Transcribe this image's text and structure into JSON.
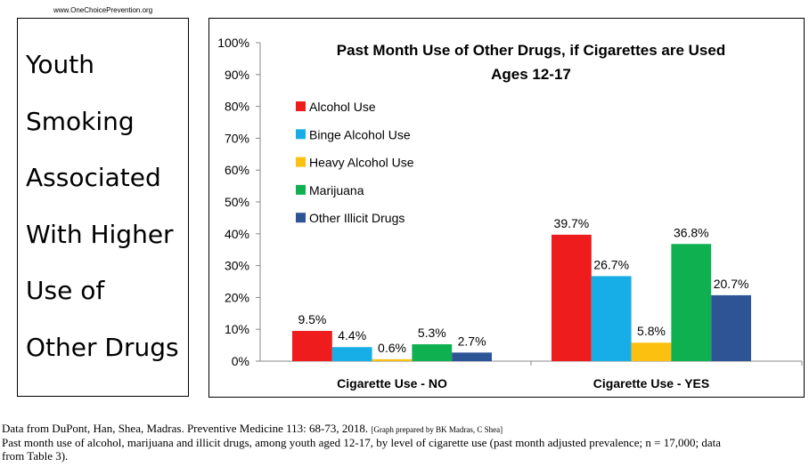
{
  "site": "www.OneChoicePrevention.org",
  "heading_lines": [
    "Youth",
    "Smoking",
    "Associated",
    "With Higher",
    "Use of",
    "Other Drugs"
  ],
  "chart_data": {
    "type": "bar",
    "title": [
      "Past Month Use of Other Drugs, if Cigarettes are Used",
      "Ages 12-17"
    ],
    "categories": [
      "Cigarette Use - NO",
      "Cigarette Use - YES"
    ],
    "ylim": [
      0,
      100
    ],
    "yticks": [
      "0%",
      "10%",
      "20%",
      "30%",
      "40%",
      "50%",
      "60%",
      "70%",
      "80%",
      "90%",
      "100%"
    ],
    "legend_position": "top-left",
    "series": [
      {
        "name": "Alcohol Use",
        "color": "#ee1c1c",
        "values": [
          9.5,
          39.7
        ],
        "labels": [
          "9.5%",
          "39.7%"
        ]
      },
      {
        "name": "Binge Alcohol Use",
        "color": "#17aee8",
        "values": [
          4.4,
          26.7
        ],
        "labels": [
          "4.4%",
          "26.7%"
        ]
      },
      {
        "name": "Heavy Alcohol Use",
        "color": "#fcc010",
        "values": [
          0.6,
          5.8
        ],
        "labels": [
          "0.6%",
          "5.8%"
        ]
      },
      {
        "name": "Marijuana",
        "color": "#0fb04f",
        "values": [
          5.3,
          36.8
        ],
        "labels": [
          "5.3%",
          "36.8%"
        ]
      },
      {
        "name": "Other Illicit Drugs",
        "color": "#2d5596",
        "values": [
          2.7,
          20.7
        ],
        "labels": [
          "2.7%",
          "20.7%"
        ]
      }
    ]
  },
  "footer": {
    "line1": "Data from DuPont, Han, Shea, Madras. Preventive Medicine 113: 68-73, 2018.",
    "credit": "[Graph prepared by BK Madras, C Shea]",
    "line2": "Past month use of alcohol, marijuana and illicit drugs, among youth aged 12-17, by level of cigarette use (past month adjusted prevalence; n = 17,000; data",
    "line3": "from Table 3)."
  }
}
